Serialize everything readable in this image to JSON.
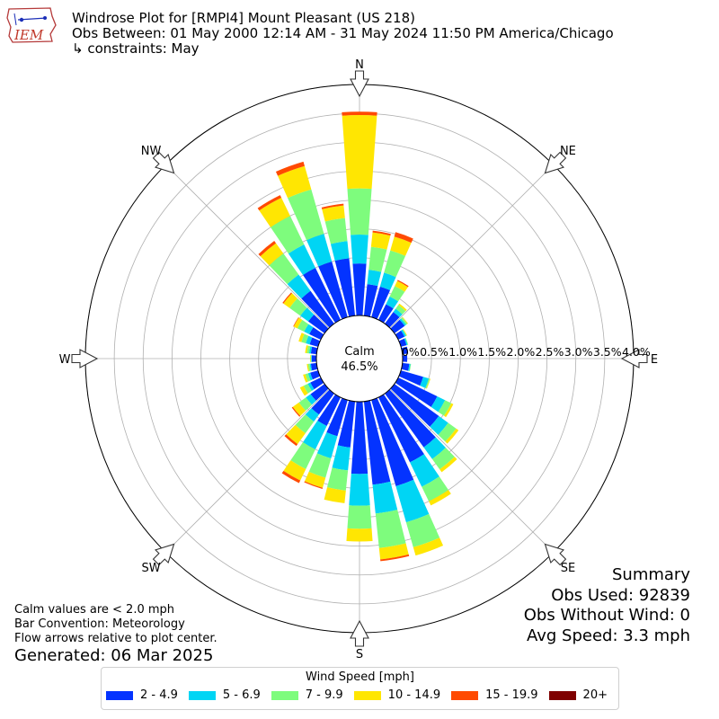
{
  "header": {
    "title": "Windrose Plot for [RMPI4] Mount Pleasant (US 218)",
    "subtitle": "Obs Between: 01 May 2000 12:14 AM - 31 May 2024 11:50 PM America/Chicago",
    "constraints": "↳ constraints: May",
    "logo_text": "IEM"
  },
  "notes": {
    "calm_note": "Calm values are < 2.0 mph",
    "bar_convention": "Bar Convention: Meteorology",
    "flow_note": "Flow arrows relative to plot center.",
    "generated": "Generated: 06 Mar 2025"
  },
  "summary": {
    "heading": "Summary",
    "obs_used": "Obs Used: 92839",
    "obs_without_wind": "Obs Without Wind: 0",
    "avg_speed": "Avg Speed: 3.3 mph"
  },
  "center": {
    "label": "Calm",
    "value": "46.5%"
  },
  "chart_data": {
    "type": "windrose",
    "radial_unit": "%",
    "radial_range": [
      0,
      4.0
    ],
    "radial_ticks": [
      "0.0%",
      "0.5%",
      "1.0%",
      "1.5%",
      "2.0%",
      "2.5%",
      "3.0%",
      "3.5%",
      "4.0%"
    ],
    "compass_labels": [
      "N",
      "NE",
      "E",
      "SE",
      "S",
      "SW",
      "W",
      "NW"
    ],
    "legend_title": "Wind Speed [mph]",
    "bins": [
      {
        "name": "2 - 4.9",
        "color": "#0433ff"
      },
      {
        "name": "5 - 6.9",
        "color": "#00d5f4"
      },
      {
        "name": "7 - 9.9",
        "color": "#7efc7d"
      },
      {
        "name": "10 - 14.9",
        "color": "#ffe602"
      },
      {
        "name": "15 - 19.9",
        "color": "#ff4a01"
      },
      {
        "name": "20+",
        "color": "#7f0000"
      }
    ],
    "directions_deg": [
      0,
      10,
      20,
      30,
      40,
      50,
      60,
      70,
      80,
      90,
      100,
      110,
      120,
      130,
      140,
      150,
      160,
      170,
      180,
      190,
      200,
      210,
      220,
      230,
      240,
      250,
      260,
      270,
      280,
      290,
      300,
      310,
      320,
      330,
      340,
      350
    ],
    "cumulative_percent": [
      [
        0.9,
        1.4,
        2.2,
        3.47,
        3.53,
        3.53
      ],
      [
        0.55,
        0.8,
        1.2,
        1.45,
        1.48,
        1.48
      ],
      [
        0.55,
        0.8,
        1.2,
        1.45,
        1.53,
        1.53
      ],
      [
        0.3,
        0.45,
        0.65,
        0.75,
        0.77,
        0.77
      ],
      [
        0.25,
        0.32,
        0.4,
        0.43,
        0.43,
        0.43
      ],
      [
        0.22,
        0.25,
        0.28,
        0.29,
        0.29,
        0.29
      ],
      [
        0.12,
        0.15,
        0.16,
        0.17,
        0.17,
        0.17
      ],
      [
        0.1,
        0.12,
        0.13,
        0.13,
        0.13,
        0.13
      ],
      [
        0.1,
        0.1,
        0.1,
        0.1,
        0.1,
        0.1
      ],
      [
        0.08,
        0.08,
        0.08,
        0.08,
        0.08,
        0.08
      ],
      [
        0.12,
        0.14,
        0.15,
        0.15,
        0.15,
        0.15
      ],
      [
        0.4,
        0.5,
        0.52,
        0.53,
        0.53,
        0.53
      ],
      [
        0.75,
        0.9,
        1.02,
        1.06,
        1.06,
        1.06
      ],
      [
        0.95,
        1.15,
        1.32,
        1.37,
        1.37,
        1.37
      ],
      [
        1.15,
        1.4,
        1.62,
        1.68,
        1.68,
        1.68
      ],
      [
        1.25,
        1.72,
        2.0,
        2.08,
        2.08,
        2.08
      ],
      [
        1.55,
        2.2,
        2.65,
        2.8,
        2.8,
        2.8
      ],
      [
        1.45,
        1.95,
        2.55,
        2.75,
        2.78,
        2.78
      ],
      [
        1.25,
        1.8,
        2.2,
        2.42,
        2.42,
        2.42
      ],
      [
        0.8,
        1.2,
        1.55,
        1.77,
        1.77,
        1.77
      ],
      [
        0.65,
        1.05,
        1.4,
        1.58,
        1.6,
        1.6
      ],
      [
        0.55,
        1.0,
        1.38,
        1.6,
        1.65,
        1.65
      ],
      [
        0.45,
        0.6,
        0.85,
        1.08,
        1.12,
        1.12
      ],
      [
        0.3,
        0.4,
        0.55,
        0.68,
        0.7,
        0.7
      ],
      [
        0.2,
        0.25,
        0.33,
        0.4,
        0.4,
        0.4
      ],
      [
        0.14,
        0.18,
        0.23,
        0.27,
        0.27,
        0.27
      ],
      [
        0.1,
        0.12,
        0.15,
        0.17,
        0.17,
        0.17
      ],
      [
        0.08,
        0.09,
        0.1,
        0.11,
        0.11,
        0.11
      ],
      [
        0.1,
        0.13,
        0.17,
        0.2,
        0.2,
        0.2
      ],
      [
        0.15,
        0.22,
        0.3,
        0.35,
        0.35,
        0.35
      ],
      [
        0.22,
        0.32,
        0.45,
        0.52,
        0.53,
        0.53
      ],
      [
        0.35,
        0.52,
        0.75,
        0.88,
        0.9,
        0.9
      ],
      [
        0.7,
        1.05,
        1.5,
        1.72,
        1.77,
        1.77
      ],
      [
        1.0,
        1.45,
        2.0,
        2.35,
        2.4,
        2.4
      ],
      [
        1.0,
        1.5,
        2.3,
        2.72,
        2.8,
        2.8
      ],
      [
        1.0,
        1.3,
        1.7,
        1.92,
        1.95,
        1.95
      ]
    ]
  }
}
